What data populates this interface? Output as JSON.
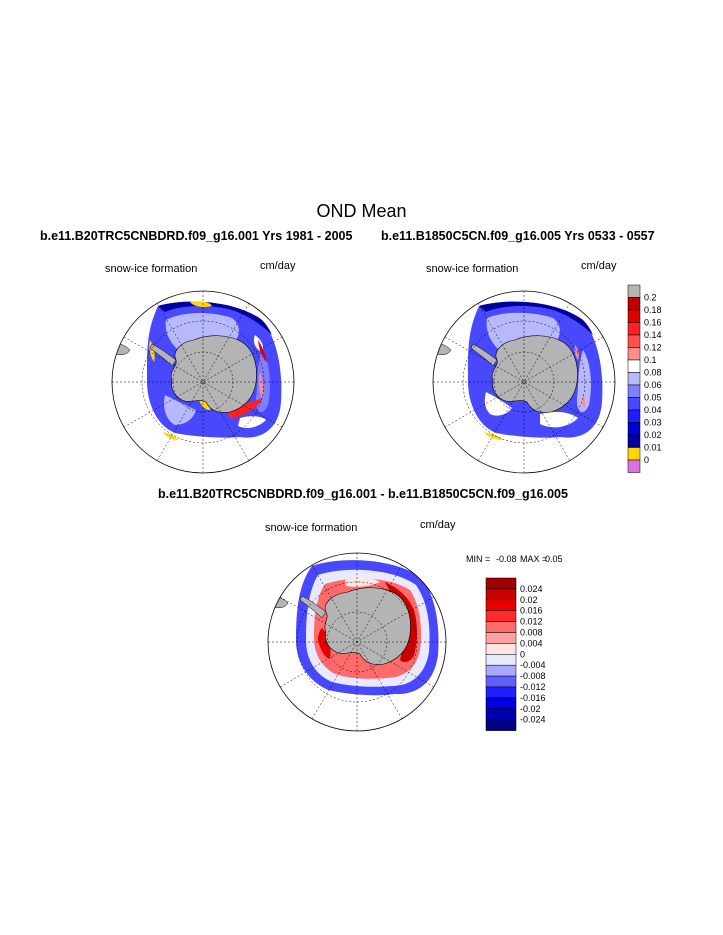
{
  "figure": {
    "title": "OND Mean",
    "difference_title": "b.e11.B20TRC5CNBDRD.f09_g16.001 - b.e11.B1850C5CN.f09_g16.005"
  },
  "colors": {
    "land": "#b4b4b4",
    "zero_fill": "#ffd700",
    "above_max": "#b4b4b4",
    "below_min": "#e070e0"
  },
  "chart_data": [
    {
      "type": "heatmap",
      "projection": "south-polar-stereographic",
      "title": "b.e11.B20TRC5CNBDRD.f09_g16.001  Yrs 1981 - 2005",
      "left_label": "snow-ice formation",
      "right_label": "cm/day",
      "variable": "snow-ice formation",
      "units": "cm/day",
      "pattern": "blue (0.02-0.05) over most sea-ice zone, pale/white patches, red streaks (0.12-0.18) off East Antarctica, yellow (0) patches near Antarctic Peninsula and Ross coast"
    },
    {
      "type": "heatmap",
      "projection": "south-polar-stereographic",
      "title": "b.e11.B1850C5CN.f09_g16.005  Yrs 0533 - 0557",
      "left_label": "snow-ice formation",
      "right_label": "cm/day",
      "variable": "snow-ice formation",
      "units": "cm/day",
      "pattern": "blue (0.02-0.06) over sea-ice zone, lighter/white patches, few pink spots, small yellow patches near coast"
    },
    {
      "type": "colorbar",
      "levels": [
        "0.2",
        "0.18",
        "0.16",
        "0.14",
        "0.12",
        "0.1",
        "0.08",
        "0.06",
        "0.05",
        "0.04",
        "0.03",
        "0.02",
        "0.01",
        "0"
      ],
      "colors": [
        "#b4b4b4",
        "#c00000",
        "#e00000",
        "#ff2020",
        "#ff5050",
        "#ff8c8c",
        "#ffffff",
        "#b8b8ff",
        "#8080ff",
        "#4848ff",
        "#1e1eff",
        "#0000d8",
        "#0000a0",
        "#ffd700",
        "#e070e0"
      ]
    },
    {
      "type": "heatmap",
      "projection": "south-polar-stereographic",
      "title": "b.e11.B20TRC5CNBDRD.f09_g16.001 - b.e11.B1850C5CN.f09_g16.005",
      "left_label": "snow-ice formation",
      "right_label": "cm/day",
      "variable": "snow-ice formation difference",
      "units": "cm/day",
      "min": -0.08,
      "max": 0.05,
      "min_label": "MIN =",
      "max_label": "MAX =",
      "min_text": "-0.08",
      "max_text": "0.05",
      "pattern": "mostly red (positive, 0.004-0.024) near coast and pack ice, blue (negative) band along outer ice edge"
    },
    {
      "type": "colorbar",
      "levels": [
        "0.024",
        "0.02",
        "0.016",
        "0.012",
        "0.008",
        "0.004",
        "0",
        "-0.004",
        "-0.008",
        "-0.012",
        "-0.016",
        "-0.02",
        "-0.024"
      ],
      "colors": [
        "#a00000",
        "#c80000",
        "#e80000",
        "#ff2a2a",
        "#ff6a6a",
        "#ffa0a0",
        "#ffe4e4",
        "#eaeaff",
        "#a8a8ff",
        "#6060ff",
        "#2020ff",
        "#0000e0",
        "#0000b0",
        "#000080"
      ]
    }
  ]
}
